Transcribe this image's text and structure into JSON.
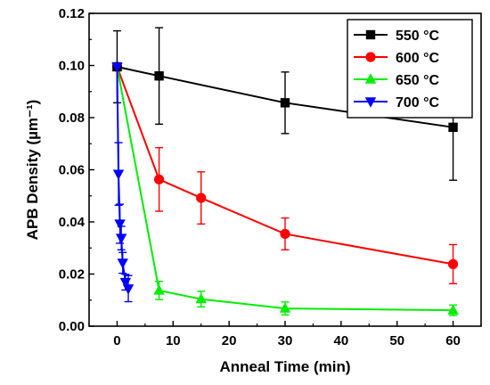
{
  "chart_data": {
    "type": "line",
    "title": "",
    "xlabel": "Anneal Time (min)",
    "ylabel": "APB Density (µm⁻¹)",
    "xlim": [
      -5,
      65
    ],
    "ylim": [
      0.0,
      0.12
    ],
    "x_ticks": [
      "0",
      "10",
      "20",
      "30",
      "40",
      "50",
      "60"
    ],
    "x_tick_values": [
      0,
      10,
      20,
      30,
      40,
      50,
      60
    ],
    "y_ticks": [
      "0.00",
      "0.02",
      "0.04",
      "0.06",
      "0.08",
      "0.10",
      "0.12"
    ],
    "y_tick_values": [
      0.0,
      0.02,
      0.04,
      0.06,
      0.08,
      0.1,
      0.12
    ],
    "grid": false,
    "legend_position": "top-right",
    "series": [
      {
        "name": "550 °C",
        "color": "#000000",
        "marker": "square",
        "x": [
          0,
          7.5,
          30,
          60
        ],
        "y": [
          0.0995,
          0.096,
          0.0857,
          0.0763
        ],
        "err": [
          0.0138,
          0.0185,
          0.0118,
          0.0203
        ]
      },
      {
        "name": "600 °C",
        "color": "#ff0000",
        "marker": "circle",
        "x": [
          0,
          7.5,
          15,
          30,
          60
        ],
        "y": [
          0.0995,
          0.0563,
          0.0492,
          0.0354,
          0.0238
        ],
        "err": [
          0.0,
          0.0122,
          0.01,
          0.0061,
          0.0075
        ]
      },
      {
        "name": "650 °C",
        "color": "#00ee00",
        "marker": "triangle-up",
        "x": [
          0,
          7.5,
          15,
          30,
          60
        ],
        "y": [
          0.0995,
          0.0137,
          0.0104,
          0.0068,
          0.0061
        ],
        "err": [
          0.0,
          0.0035,
          0.003,
          0.0025,
          0.002
        ]
      },
      {
        "name": "700 °C",
        "color": "#0000ff",
        "marker": "triangle-down",
        "x": [
          0,
          0.25,
          0.5,
          0.75,
          1.0,
          1.5,
          2.0
        ],
        "y": [
          0.0995,
          0.0584,
          0.0393,
          0.0338,
          0.0243,
          0.0169,
          0.0144
        ],
        "err": [
          0.0,
          0.012,
          0.0075,
          0.0045,
          0.004,
          0.003,
          0.005
        ]
      }
    ]
  }
}
